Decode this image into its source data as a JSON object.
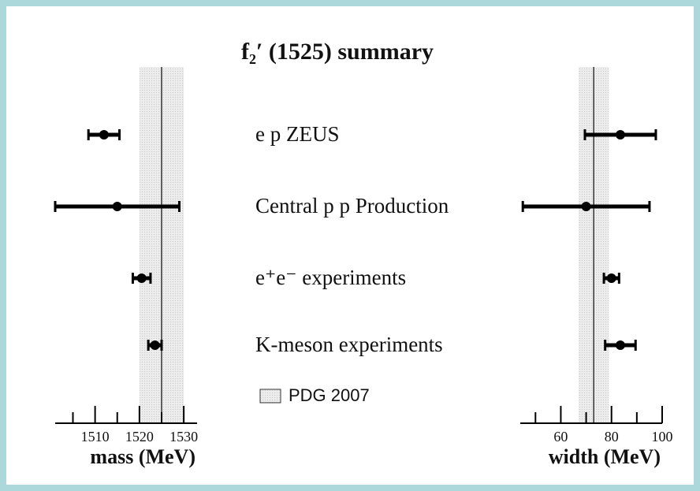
{
  "chart_data": {
    "type": "errorbar",
    "title": "f₂′ (1525) summary",
    "categories": [
      "e p ZEUS",
      "Central p p Production",
      "e⁺e⁻ experiments",
      "K-meson experiments"
    ],
    "legend": "PDG 2007",
    "panels": [
      {
        "xlabel": "mass (MeV)",
        "xlim": [
          1501,
          1533
        ],
        "xticks": [
          1510,
          1520,
          1530
        ],
        "minor_xticks": [
          1505,
          1515,
          1525
        ],
        "values": [
          1512,
          1515,
          1520.5,
          1523.5
        ],
        "errors": [
          3.5,
          14,
          2,
          1.5
        ],
        "pdg_value": 1525,
        "pdg_error": 5
      },
      {
        "xlabel": "width (MeV)",
        "xlim": [
          44,
          100
        ],
        "xticks": [
          60,
          80,
          100
        ],
        "minor_xticks": [
          50,
          70,
          90
        ],
        "values": [
          83.5,
          70,
          80,
          83.5
        ],
        "errors": [
          14,
          25,
          3,
          6
        ],
        "pdg_value": 73,
        "pdg_error": 6
      }
    ],
    "color": "#000000",
    "band_color": "#e6e6e6"
  }
}
